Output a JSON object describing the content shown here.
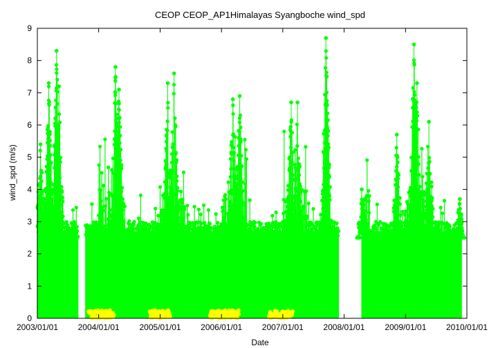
{
  "chart_data": {
    "type": "scatter",
    "title": "CEOP CEOP_AP1Himalayas Syangboche  wind_spd",
    "xlabel": "Date",
    "ylabel": "wind_spd (m/s)",
    "xlim": [
      "2003/01/01",
      "2010/01/01"
    ],
    "ylim": [
      0,
      9
    ],
    "x_tick_labels": [
      "2003/01/01",
      "2004/01/01",
      "2005/01/01",
      "2006/01/01",
      "2007/01/01",
      "2008/01/01",
      "2009/01/01",
      "2010/01/01"
    ],
    "y_tick_labels": [
      "0",
      "1",
      "2",
      "3",
      "4",
      "5",
      "6",
      "7",
      "8",
      "9"
    ],
    "grid": false,
    "legend": "none",
    "series": [
      {
        "color": "#00ff00",
        "marker": "circle-with-lines",
        "data_periods": [
          [
            "2003/01/01",
            "2003/09/01"
          ],
          [
            "2003/10/15",
            "2007/11/30"
          ],
          [
            "2008/04/15",
            "2009/12/01"
          ]
        ],
        "typical_max": 2.7,
        "peaks": [
          [
            "2003/01/20",
            5.4
          ],
          [
            "2003/03/10",
            7.3
          ],
          [
            "2003/04/25",
            8.3
          ],
          [
            "2003/05/10",
            7.2
          ],
          [
            "2004/04/10",
            7.8
          ],
          [
            "2004/05/01",
            7.1
          ],
          [
            "2005/02/15",
            7.3
          ],
          [
            "2005/03/25",
            7.6
          ],
          [
            "2006/03/10",
            6.8
          ],
          [
            "2006/04/20",
            6.9
          ],
          [
            "2007/02/20",
            6.7
          ],
          [
            "2007/03/30",
            6.7
          ],
          [
            "2007/09/15",
            8.7
          ],
          [
            "2007/09/20",
            7.5
          ],
          [
            "2008/04/15",
            4.0
          ],
          [
            "2008/11/10",
            5.7
          ],
          [
            "2009/02/20",
            8.5
          ],
          [
            "2009/03/10",
            7.3
          ],
          [
            "2009/05/20",
            6.1
          ],
          [
            "2009/11/20",
            3.7
          ]
        ]
      },
      {
        "color": "#ffff00",
        "marker": "circle",
        "value_range": [
          0,
          0.25
        ],
        "periods": [
          [
            "2003/11/01",
            "2004/04/01"
          ],
          [
            "2004/11/01",
            "2005/03/01"
          ],
          [
            "2005/10/25",
            "2006/04/15"
          ],
          [
            "2006/10/10",
            "2007/03/01"
          ]
        ]
      }
    ]
  }
}
